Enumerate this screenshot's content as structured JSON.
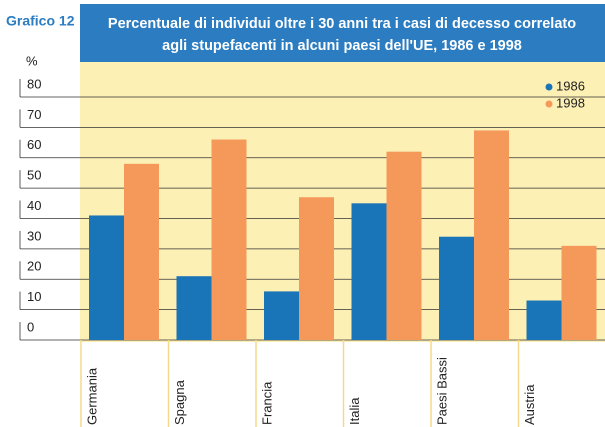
{
  "chart_data": {
    "type": "bar",
    "label": "Grafico 12",
    "title": [
      "Percentuale di individui oltre i 30 anni tra i casi di decesso correlato",
      "agli stupefacenti in alcuni paesi dell'UE, 1986 e 1998"
    ],
    "ylabel": "%",
    "categories": [
      "Germania",
      "Spagna",
      "Francia",
      "Italia",
      "Paesi Bassi",
      "Austria"
    ],
    "series": [
      {
        "name": "1986",
        "color": "#1a74b8",
        "values": [
          41,
          21,
          16,
          45,
          34,
          13
        ]
      },
      {
        "name": "1998",
        "color": "#f5995a",
        "values": [
          58,
          66,
          47,
          62,
          69,
          31
        ]
      }
    ],
    "ylim": [
      0,
      80
    ],
    "yticks": [
      0,
      10,
      20,
      30,
      40,
      50,
      60,
      70,
      80
    ],
    "grid": true,
    "legend": "top-right"
  }
}
